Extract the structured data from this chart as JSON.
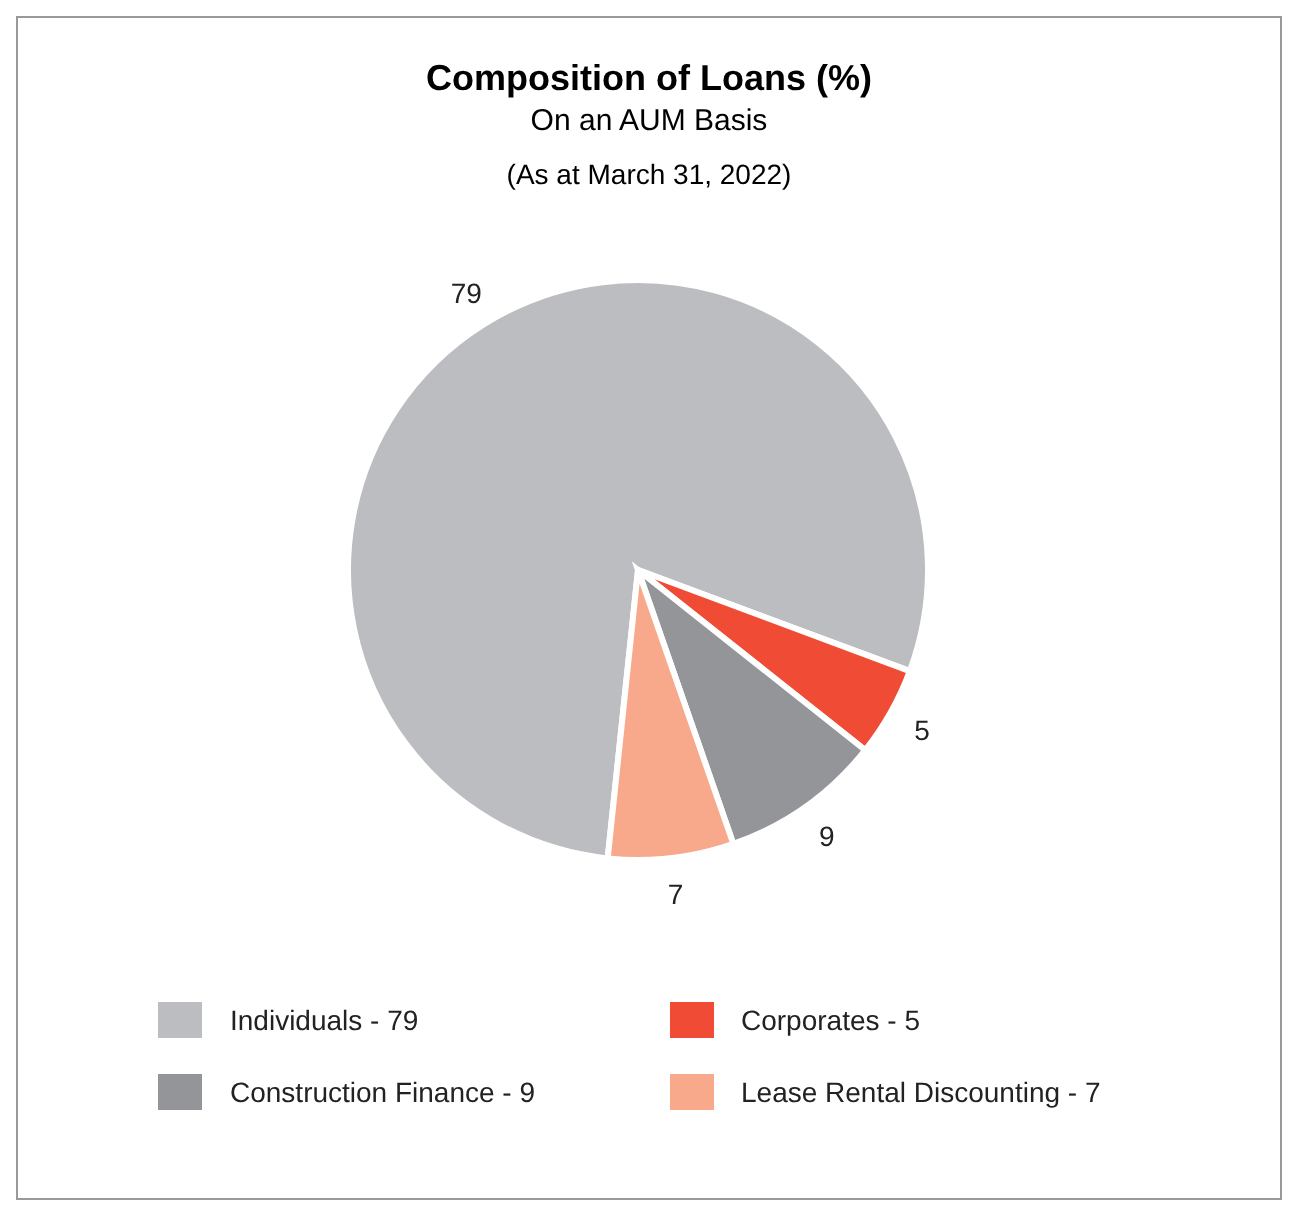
{
  "chart_data": {
    "type": "pie",
    "title": "Composition of Loans  (%)",
    "subtitle": "On an AUM Basis",
    "annotations": [
      "(As at March 31, 2022)"
    ],
    "categories": [
      "Individuals - 79",
      "Corporates - 5",
      "Construction Finance - 9",
      "Lease Rental Discounting - 7"
    ],
    "values": [
      79,
      5,
      9,
      7
    ],
    "colors": [
      "#bcbdc0",
      "#ef4b35",
      "#939598",
      "#f9a98b"
    ],
    "data_labels": true,
    "legend": "bottom"
  }
}
